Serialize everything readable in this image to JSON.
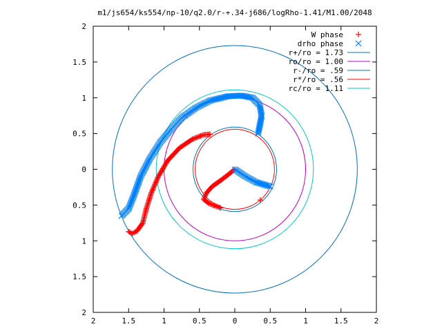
{
  "chart_data": {
    "type": "scatter",
    "title": "m1/js654/ks554/np-10/q2.0/r-+.34-j686/logRho-1.41/M1.00/2048",
    "xlabel": "",
    "ylabel": "",
    "xlim": [
      -2,
      2
    ],
    "ylim": [
      -2,
      2
    ],
    "x_tick_labels": [
      "2",
      "1.5",
      "1",
      "0.5",
      "0",
      "0.5",
      "1",
      "1.5",
      "2"
    ],
    "y_tick_labels": [
      "2",
      "1.5",
      "1",
      "0.5",
      "0",
      "0.5",
      "1",
      "1.5",
      "2"
    ],
    "grid": false,
    "legend_position": "top-right",
    "series": [
      {
        "name": "W phase",
        "marker": "plus",
        "color": "#ff0000",
        "points": [
          [
            -1.5,
            -0.87
          ],
          [
            -1.45,
            -0.9
          ],
          [
            -1.38,
            -0.86
          ],
          [
            -1.3,
            -0.75
          ],
          [
            -1.25,
            -0.55
          ],
          [
            -1.18,
            -0.33
          ],
          [
            -1.08,
            -0.1
          ],
          [
            -0.95,
            0.12
          ],
          [
            -0.78,
            0.3
          ],
          [
            -0.6,
            0.42
          ],
          [
            -0.45,
            0.48
          ],
          [
            -0.35,
            0.49
          ],
          [
            0.0,
            0.0
          ],
          [
            -0.1,
            -0.08
          ],
          [
            -0.22,
            -0.17
          ],
          [
            -0.32,
            -0.24
          ],
          [
            -0.4,
            -0.33
          ],
          [
            -0.44,
            -0.42
          ],
          [
            -0.36,
            -0.48
          ],
          [
            -0.2,
            -0.54
          ],
          [
            0.36,
            -0.43
          ]
        ]
      },
      {
        "name": "drho phase",
        "marker": "cross",
        "color": "#0080ff",
        "points": [
          [
            -1.6,
            -0.65
          ],
          [
            -1.5,
            -0.55
          ],
          [
            -1.42,
            -0.35
          ],
          [
            -1.33,
            -0.1
          ],
          [
            -1.2,
            0.15
          ],
          [
            -1.05,
            0.38
          ],
          [
            -0.9,
            0.56
          ],
          [
            -0.75,
            0.72
          ],
          [
            -0.55,
            0.86
          ],
          [
            -0.35,
            0.96
          ],
          [
            -0.1,
            1.02
          ],
          [
            0.1,
            1.03
          ],
          [
            0.25,
            1.0
          ],
          [
            0.35,
            0.9
          ],
          [
            0.38,
            0.75
          ],
          [
            0.33,
            0.5
          ],
          [
            0.0,
            0.0
          ],
          [
            0.15,
            -0.1
          ],
          [
            0.3,
            -0.18
          ],
          [
            0.5,
            -0.24
          ]
        ]
      }
    ],
    "circles": [
      {
        "name": "r+/ro = 1.73",
        "radius": 1.73,
        "color": "#0070c0"
      },
      {
        "name": "ro/ro = 1.00",
        "radius": 1.0,
        "color": "#c000c0"
      },
      {
        "name": "r-/ro = .59",
        "radius": 0.59,
        "color": "#0070c0"
      },
      {
        "name": "r*/ro = .56",
        "radius": 0.56,
        "color": "#ff0000"
      },
      {
        "name": "rc/ro = 1.11",
        "radius": 1.11,
        "color": "#00c8c8"
      }
    ]
  }
}
